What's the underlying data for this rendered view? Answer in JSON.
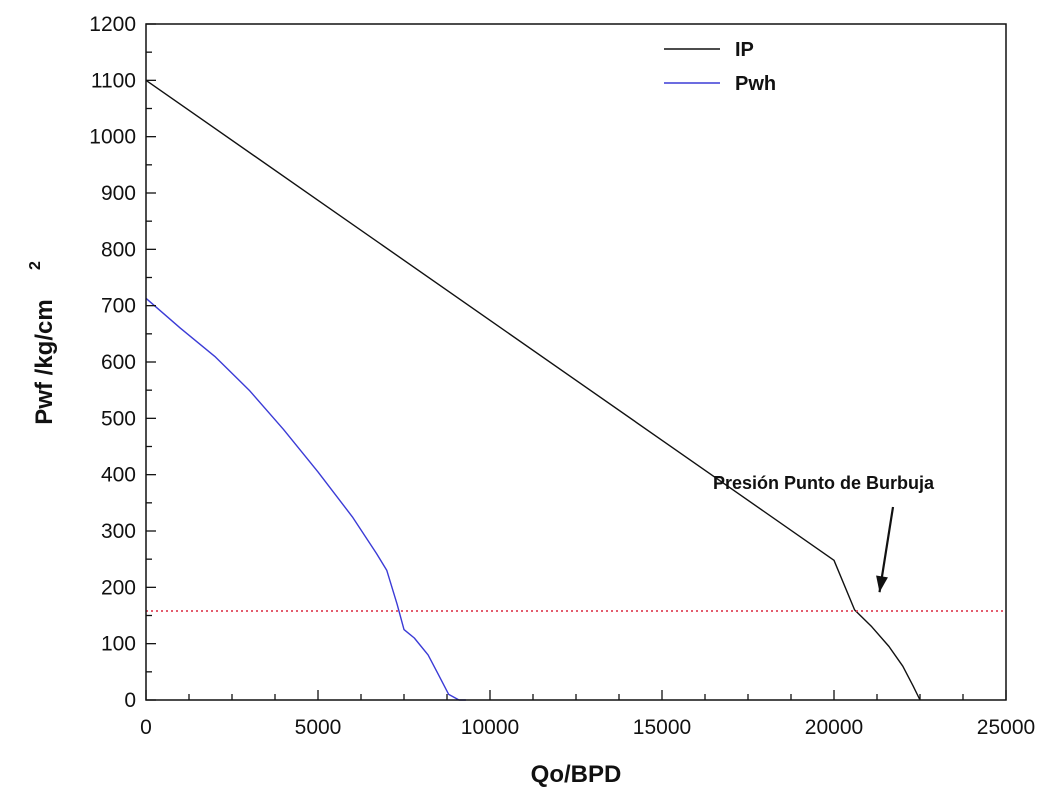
{
  "chart_data": {
    "type": "line",
    "xlabel": "Qo/BPD",
    "ylabel_main": "Pwf /kg/cm",
    "ylabel_sup": "2",
    "xlim": [
      0,
      25000
    ],
    "ylim": [
      0,
      1200
    ],
    "x_ticks": [
      "0",
      "5000",
      "10000",
      "15000",
      "20000",
      "25000"
    ],
    "y_ticks": [
      "0",
      "100",
      "200",
      "300",
      "400",
      "500",
      "600",
      "700",
      "800",
      "900",
      "1000",
      "1100",
      "1200"
    ],
    "grid": false,
    "legend_position": "top-right",
    "series": [
      {
        "name": "IP",
        "color": "#111111",
        "points": [
          [
            0,
            1100
          ],
          [
            5000,
            887
          ],
          [
            10000,
            674
          ],
          [
            15000,
            461
          ],
          [
            20000,
            248
          ],
          [
            20600,
            160
          ],
          [
            21100,
            130
          ],
          [
            21600,
            95
          ],
          [
            22000,
            60
          ],
          [
            22300,
            25
          ],
          [
            22500,
            0
          ]
        ]
      },
      {
        "name": "Pwh",
        "color": "#3b3bd6",
        "points": [
          [
            0,
            713
          ],
          [
            1000,
            660
          ],
          [
            2000,
            610
          ],
          [
            3000,
            550
          ],
          [
            4000,
            480
          ],
          [
            5000,
            405
          ],
          [
            6000,
            325
          ],
          [
            6700,
            260
          ],
          [
            7000,
            230
          ],
          [
            7300,
            170
          ],
          [
            7500,
            125
          ],
          [
            7800,
            110
          ],
          [
            8200,
            80
          ],
          [
            8500,
            45
          ],
          [
            8800,
            10
          ],
          [
            9100,
            0
          ],
          [
            9300,
            0
          ]
        ]
      },
      {
        "name": "",
        "style": "dotted",
        "color": "#e0455a",
        "points": [
          [
            0,
            158
          ],
          [
            25000,
            158
          ]
        ]
      }
    ],
    "annotations": [
      {
        "text": "Presión Punto de Burbuja",
        "arrow_to": [
          20800,
          170
        ]
      }
    ]
  }
}
